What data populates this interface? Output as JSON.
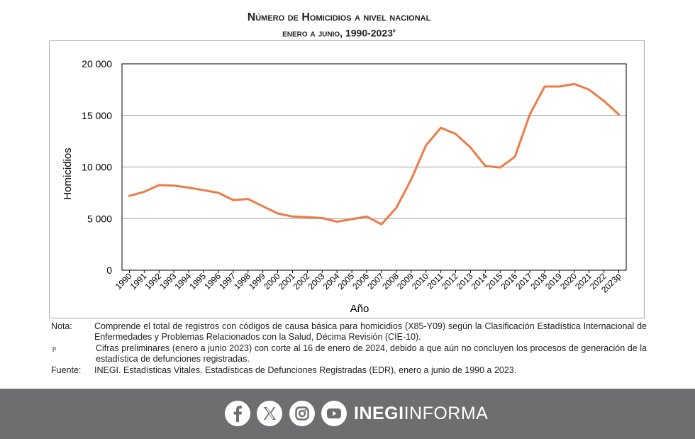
{
  "header": {
    "title": "Número de Homicidios a nivel nacional",
    "subtitle": "enero a junio, 1990-2023",
    "subtitle_sup": "p"
  },
  "chart_data": {
    "type": "line",
    "title": "Número de Homicidios a nivel nacional",
    "xlabel": "Año",
    "ylabel": "Homicidios",
    "ylim": [
      0,
      20000
    ],
    "yticks": [
      0,
      5000,
      10000,
      15000,
      20000
    ],
    "ytick_labels": [
      "0",
      "5 000",
      "10 000",
      "15 000",
      "20 000"
    ],
    "grid": true,
    "line_color": "#EE7B45",
    "categories": [
      "1990",
      "1991",
      "1992",
      "1993",
      "1994",
      "1995",
      "1996",
      "1997",
      "1998",
      "1999",
      "2000",
      "2001",
      "2002",
      "2003",
      "2004",
      "2005",
      "2006",
      "2007",
      "2008",
      "2009",
      "2010",
      "2011",
      "2012",
      "2013",
      "2014",
      "2015",
      "2016",
      "2017",
      "2018",
      "2019",
      "2020",
      "2021",
      "2022",
      "2023p"
    ],
    "series": [
      {
        "name": "Homicidios",
        "values": [
          7200,
          7600,
          8250,
          8200,
          8000,
          7750,
          7500,
          6800,
          6900,
          6200,
          5500,
          5200,
          5150,
          5050,
          4700,
          4950,
          5200,
          4450,
          6050,
          8800,
          12100,
          13800,
          13200,
          11900,
          10100,
          9950,
          11000,
          15100,
          17800,
          17800,
          18050,
          17500,
          16400,
          15100
        ]
      }
    ]
  },
  "notes": {
    "nota_key": "Nota:",
    "nota_text": "Comprende el total de registros con códigos de causa básica para homicidios (X85-Y09) según la Clasificación Estadística Internacional de Enfermedades y Problemas Relacionados con la Salud, Décima Revisión (CIE-10).",
    "p_key": "p",
    "p_text": "Cifras preliminares (enero a junio 2023) con corte al 16 de enero de 2024, debido a que aún no concluyen los procesos de generación de la estadística de defunciones registradas.",
    "fuente_key": "Fuente:",
    "fuente_text": "INEGI. Estadísticas Vitales. Estadísticas de Defunciones Registradas (EDR), enero a junio de 1990 a 2023."
  },
  "footer": {
    "brand_bold": "INEGI",
    "brand_light": "INFORMA",
    "icons": [
      "facebook-icon",
      "x-icon",
      "instagram-icon",
      "youtube-icon"
    ],
    "background": "#6E6E70"
  }
}
